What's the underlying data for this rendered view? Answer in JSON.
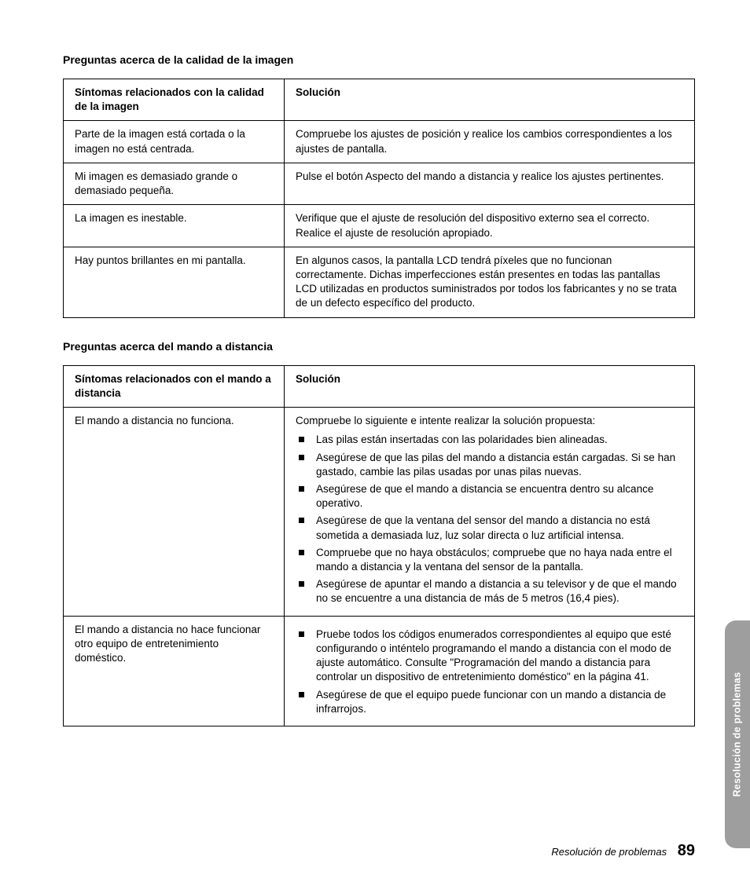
{
  "headings": {
    "image_quality": "Preguntas acerca de la calidad de la imagen",
    "remote_control": "Preguntas acerca del mando a distancia"
  },
  "table1": {
    "header_symptom": "Síntomas relacionados con la calidad de la imagen",
    "header_solution": "Solución",
    "rows": [
      {
        "symptom": "Parte de la imagen está cortada o la imagen no está centrada.",
        "solution": "Compruebe los ajustes de posición y realice los cambios correspondientes a los ajustes de pantalla."
      },
      {
        "symptom": "Mi imagen es demasiado grande o demasiado pequeña.",
        "solution": "Pulse el botón Aspecto del mando a distancia y realice los ajustes pertinentes."
      },
      {
        "symptom": "La imagen es inestable.",
        "solution": "Verifique que el ajuste de resolución del dispositivo externo sea el correcto. Realice el ajuste de resolución apropiado."
      },
      {
        "symptom": "Hay puntos brillantes en mi pantalla.",
        "solution": "En algunos casos, la pantalla LCD tendrá píxeles que no funcionan correctamente. Dichas imperfecciones están presentes en todas las pantallas LCD utilizadas en productos suministrados por todos los fabricantes y no se trata de un defecto específico del producto."
      }
    ]
  },
  "table2": {
    "header_symptom": "Síntomas relacionados con el mando a distancia",
    "header_solution": "Solución",
    "row1": {
      "symptom": "El mando a distancia no funciona.",
      "intro": "Compruebe lo siguiente e intente realizar la solución propuesta:",
      "items": [
        "Las pilas están insertadas con las polaridades bien alineadas.",
        "Asegúrese de que las pilas del mando a distancia están cargadas. Si se han gastado, cambie las pilas usadas por unas pilas nuevas.",
        "Asegúrese de que el mando a distancia se encuentra dentro su alcance operativo.",
        "Asegúrese de que la ventana del sensor del mando a distancia no está sometida a demasiada luz, luz solar directa o luz artificial intensa.",
        "Compruebe que no haya obstáculos; compruebe que no haya nada entre el mando a distancia y la ventana del sensor de la pantalla.",
        "Asegúrese de apuntar el mando a distancia a su televisor y de que el mando no se encuentre a una distancia de más de 5 metros (16,4 pies)."
      ]
    },
    "row2": {
      "symptom": "El mando a distancia no hace funcionar otro equipo de entretenimiento doméstico.",
      "items": [
        "Pruebe todos los códigos enumerados correspondientes al equipo que esté configurando o inténtelo programando el mando a distancia con el modo de ajuste automático.  Consulte \"Programación del mando a distancia para controlar un dispositivo de entretenimiento doméstico\" en la página 41.",
        "Asegúrese de que el equipo puede funcionar con un mando a distancia de infrarrojos."
      ]
    }
  },
  "side_tab": "Resolución de problemas",
  "footer": {
    "title": "Resolución de problemas",
    "page": "89"
  }
}
